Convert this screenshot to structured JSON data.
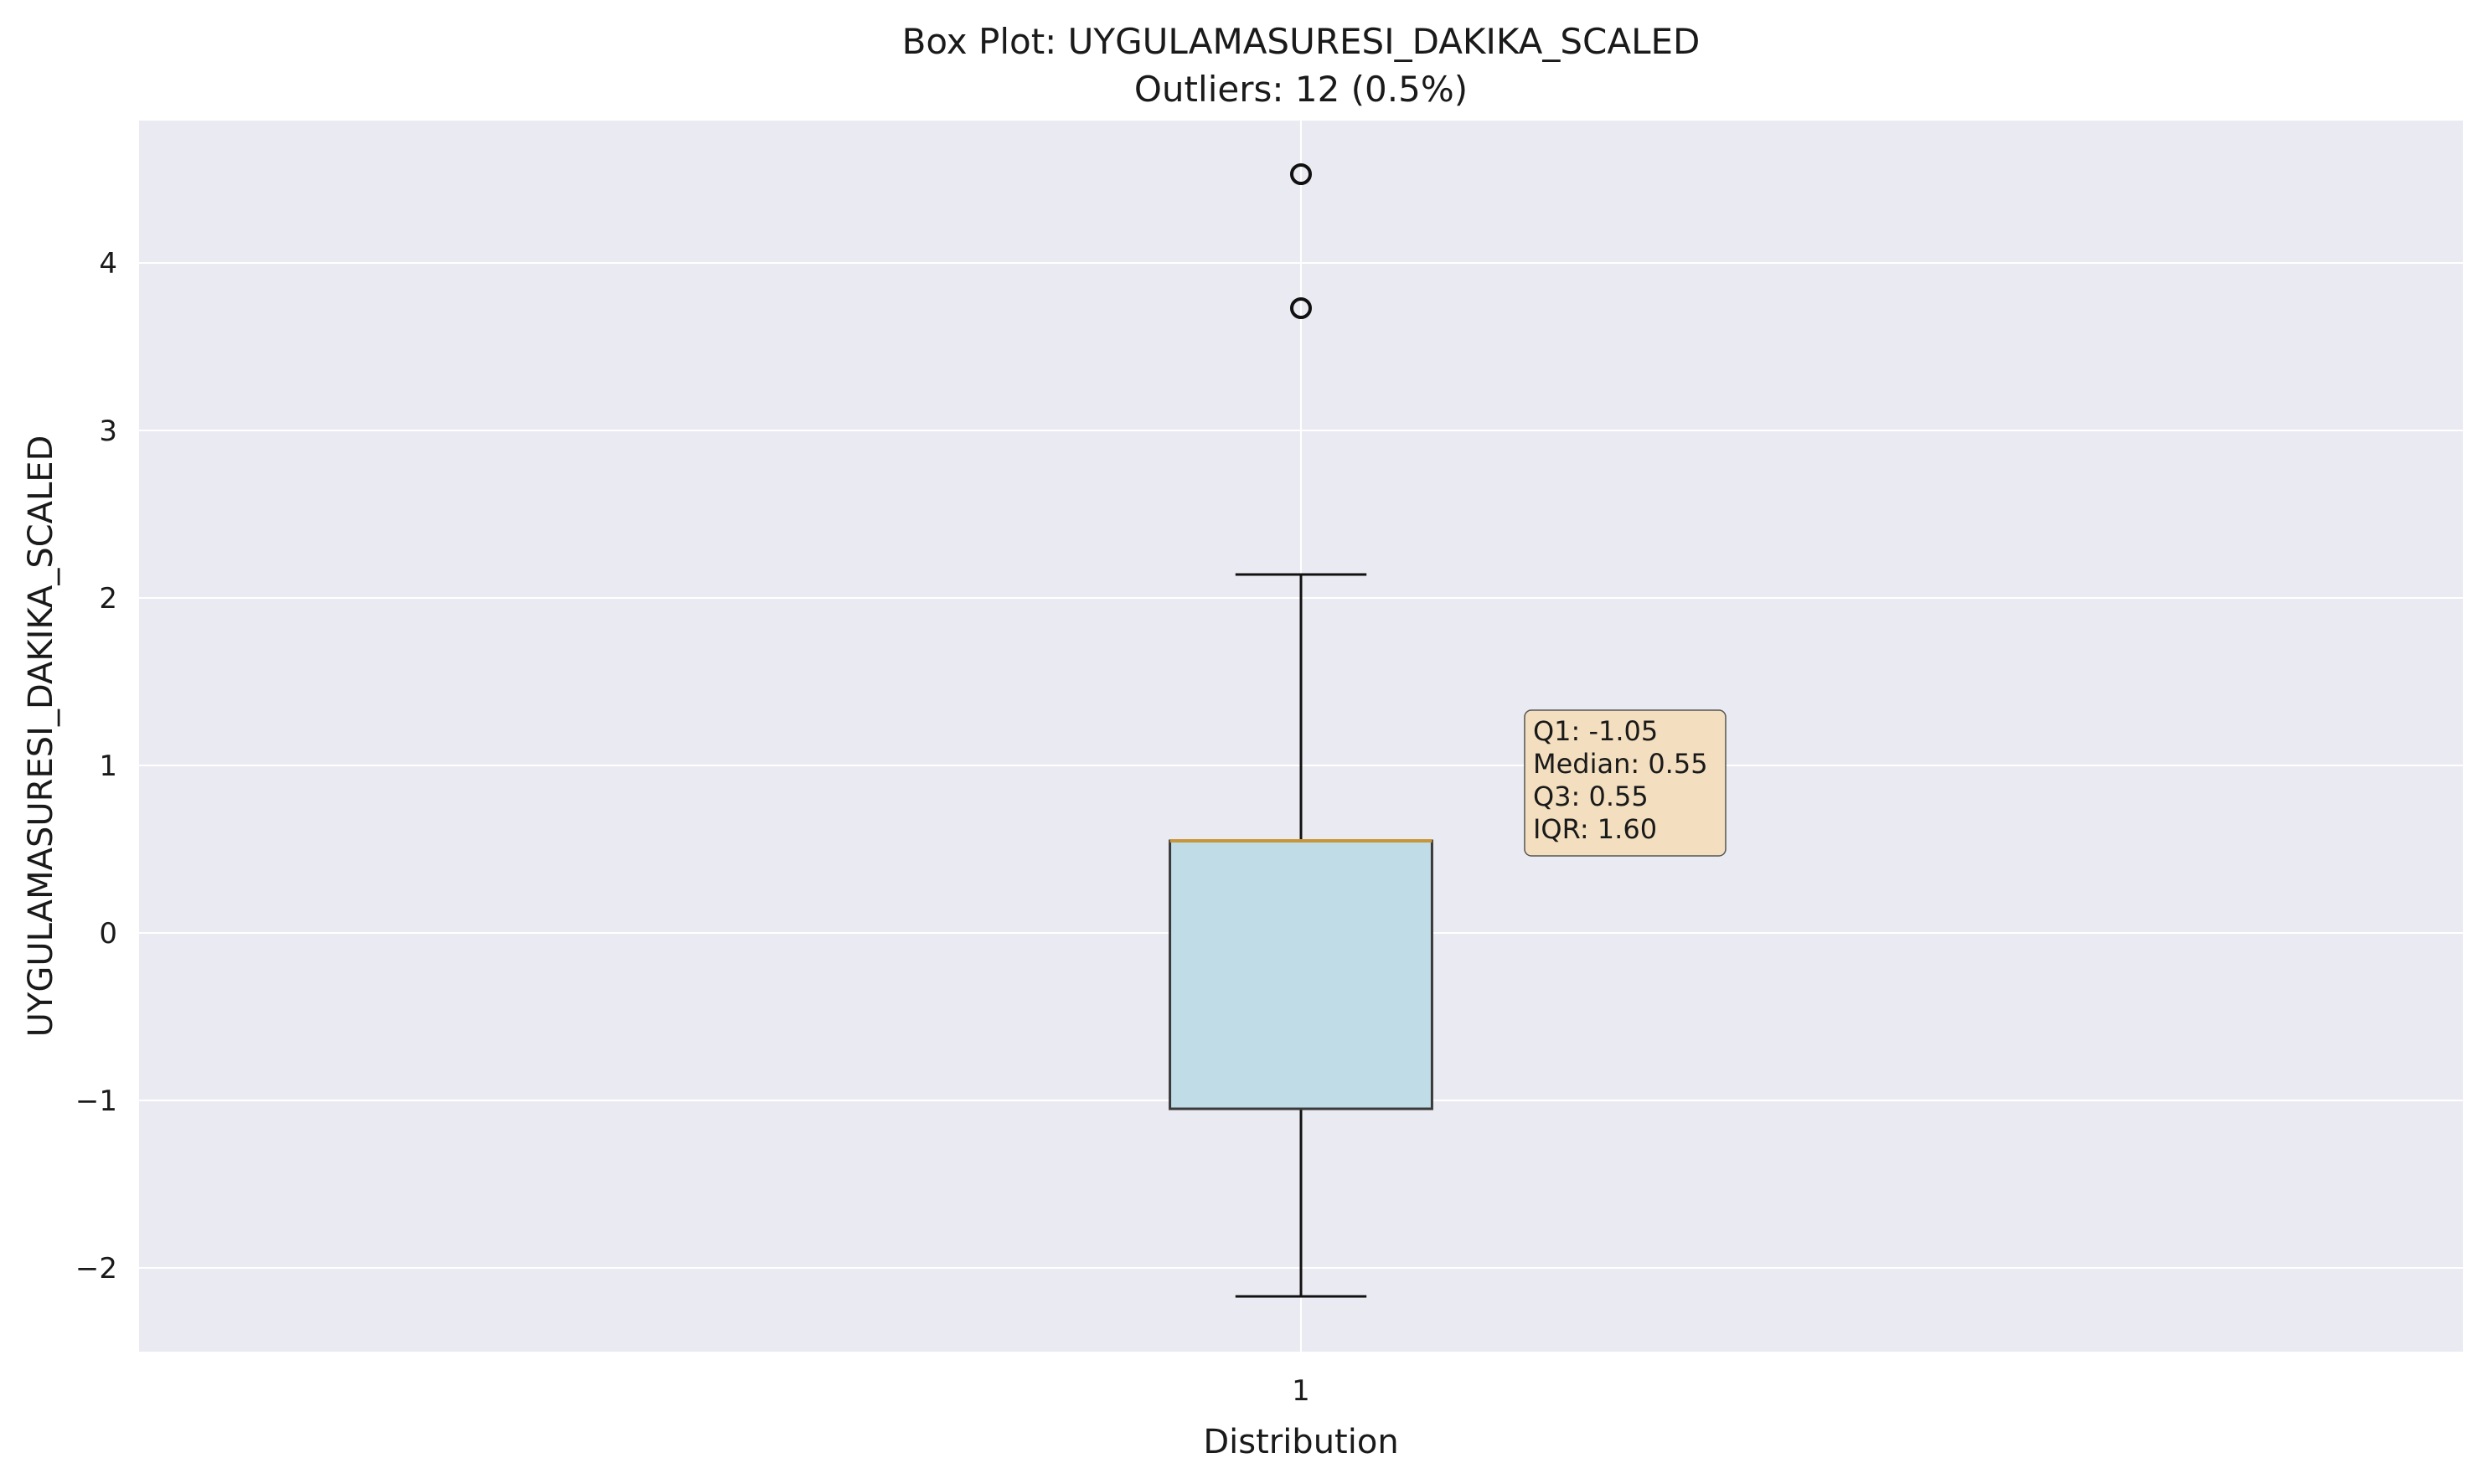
{
  "chart_data": {
    "type": "box",
    "title": "Box Plot: UYGULAMASURESI_DAKIKA_SCALED",
    "subtitle": "Outliers: 12 (0.5%)",
    "xlabel": "Distribution",
    "ylabel": "UYGULAMASURESI_DAKIKA_SCALED",
    "categories": [
      "1"
    ],
    "x_position": 1,
    "xlim": [
      0.335,
      1.665
    ],
    "ylim": [
      -2.5,
      4.85
    ],
    "yticks": [
      -2,
      -1,
      0,
      1,
      2,
      3,
      4
    ],
    "ytick_labels": [
      "−2",
      "−1",
      "0",
      "1",
      "2",
      "3",
      "4"
    ],
    "box": {
      "q1": -1.05,
      "median": 0.55,
      "q3": 0.55,
      "whisker_low": -2.17,
      "whisker_high": 2.14,
      "outliers": [
        4.53,
        3.73
      ]
    },
    "annotation": {
      "lines": [
        "Q1: -1.05",
        "Median: 0.55",
        "Q3: 0.55",
        "IQR: 1.60"
      ],
      "anchor_x": 1.128,
      "anchor_y": 1.33
    },
    "grid": true,
    "colors": {
      "plot_bg": "#eaeaf2",
      "grid": "#ffffff",
      "box_fill": "#bfdce7",
      "box_edge": "#3a3a3a",
      "median": "#c8963a",
      "whisker": "#111111",
      "outlier_edge": "#111111",
      "annotation_bg": "#f3dfbf",
      "annotation_edge": "#555555"
    }
  }
}
